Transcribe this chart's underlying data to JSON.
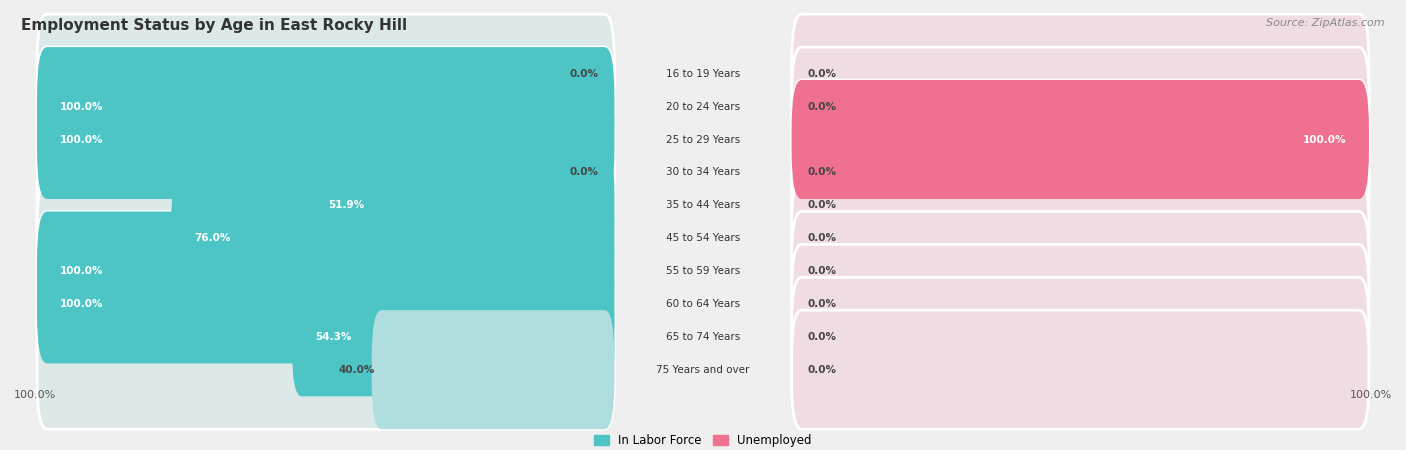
{
  "title": "Employment Status by Age in East Rocky Hill",
  "source": "Source: ZipAtlas.com",
  "age_groups": [
    "16 to 19 Years",
    "20 to 24 Years",
    "25 to 29 Years",
    "30 to 34 Years",
    "35 to 44 Years",
    "45 to 54 Years",
    "55 to 59 Years",
    "60 to 64 Years",
    "65 to 74 Years",
    "75 Years and over"
  ],
  "in_labor_force": [
    0.0,
    100.0,
    100.0,
    0.0,
    51.9,
    76.0,
    100.0,
    100.0,
    54.3,
    40.0
  ],
  "unemployed": [
    0.0,
    0.0,
    100.0,
    0.0,
    0.0,
    0.0,
    0.0,
    0.0,
    0.0,
    0.0
  ],
  "color_labor": "#4dc5c5",
  "color_unemployed": "#f07090",
  "color_labor_light": "#b0dede",
  "color_unemployed_light": "#f5b8c8",
  "bg_color": "#efefef",
  "bar_bg_left": "#dde8e8",
  "bar_bg_right": "#f0dde3",
  "legend_labor": "In Labor Force",
  "legend_unemployed": "Unemployed",
  "axis_label_left": "100.0%",
  "axis_label_right": "100.0%"
}
